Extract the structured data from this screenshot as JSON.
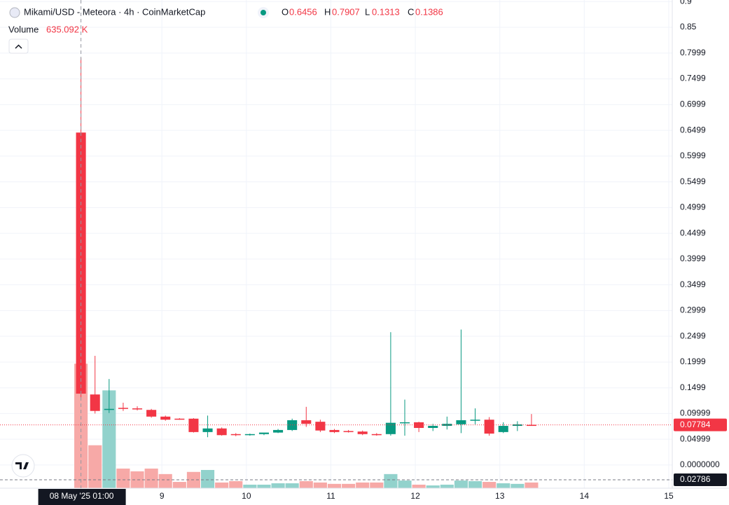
{
  "chart_data": {
    "type": "candlestick",
    "title": "Mikami/USD - Meteora · 4h · CoinMarketCap",
    "volume_title": "Volume",
    "volume_label": "635.092 K",
    "crosshair_label": "08 May '25 01:00",
    "ohlc_letters": [
      "O",
      "H",
      "L",
      "C"
    ],
    "x": [
      "2025-05-08T01:00",
      "2025-05-08T05:00",
      "2025-05-08T09:00",
      "2025-05-08T13:00",
      "2025-05-08T17:00",
      "2025-05-08T21:00",
      "2025-05-09T01:00",
      "2025-05-09T05:00",
      "2025-05-09T09:00",
      "2025-05-09T13:00",
      "2025-05-09T17:00",
      "2025-05-09T21:00",
      "2025-05-10T01:00",
      "2025-05-10T05:00",
      "2025-05-10T09:00",
      "2025-05-10T13:00",
      "2025-05-10T17:00",
      "2025-05-10T21:00",
      "2025-05-11T01:00",
      "2025-05-11T05:00",
      "2025-05-11T09:00",
      "2025-05-11T13:00",
      "2025-05-11T17:00",
      "2025-05-11T21:00",
      "2025-05-12T01:00",
      "2025-05-12T05:00",
      "2025-05-12T09:00",
      "2025-05-12T13:00",
      "2025-05-12T17:00",
      "2025-05-12T21:00",
      "2025-05-13T01:00",
      "2025-05-13T05:00",
      "2025-05-13T09:00"
    ],
    "open": [
      0.6456,
      0.137,
      0.107,
      0.111,
      0.11,
      0.107,
      0.094,
      0.09,
      0.09,
      0.064,
      0.071,
      0.06,
      0.059,
      0.06,
      0.063,
      0.068,
      0.087,
      0.084,
      0.068,
      0.066,
      0.065,
      0.06,
      0.06,
      0.082,
      0.083,
      0.072,
      0.076,
      0.079,
      0.087,
      0.088,
      0.064,
      0.076,
      0.078
    ],
    "high": [
      0.7907,
      0.212,
      0.167,
      0.121,
      0.114,
      0.109,
      0.096,
      0.091,
      0.091,
      0.096,
      0.073,
      0.062,
      0.061,
      0.062,
      0.07,
      0.09,
      0.113,
      0.088,
      0.07,
      0.068,
      0.067,
      0.062,
      0.258,
      0.127,
      0.084,
      0.08,
      0.094,
      0.263,
      0.11,
      0.093,
      0.083,
      0.085,
      0.099
    ],
    "low": [
      0.1313,
      0.1,
      0.101,
      0.105,
      0.106,
      0.092,
      0.086,
      0.088,
      0.063,
      0.054,
      0.057,
      0.056,
      0.057,
      0.058,
      0.062,
      0.066,
      0.074,
      0.064,
      0.062,
      0.063,
      0.058,
      0.057,
      0.057,
      0.057,
      0.064,
      0.066,
      0.069,
      0.062,
      0.079,
      0.057,
      0.062,
      0.066,
      0.076
    ],
    "close": [
      0.1386,
      0.105,
      0.109,
      0.109,
      0.109,
      0.094,
      0.088,
      0.089,
      0.064,
      0.071,
      0.058,
      0.059,
      0.06,
      0.063,
      0.068,
      0.087,
      0.08,
      0.067,
      0.064,
      0.065,
      0.06,
      0.059,
      0.082,
      0.083,
      0.072,
      0.076,
      0.08,
      0.087,
      0.088,
      0.061,
      0.076,
      0.079,
      0.0778
    ],
    "volume": [
      635.092,
      219,
      499,
      100,
      86,
      100,
      72,
      32,
      83,
      93,
      29,
      36,
      18,
      18,
      25,
      25,
      36,
      29,
      22,
      22,
      29,
      29,
      72,
      39,
      18,
      14,
      18,
      39,
      36,
      32,
      25,
      22,
      29
    ],
    "up_color": "#089981",
    "down_color": "#f23645",
    "up_volume_color": "#92d2cc",
    "down_volume_color": "#f7a9a7",
    "last_price": 0.07784,
    "volume_tag": "0.02786",
    "xlim": [
      "2025-05-07T02:00",
      "2025-05-15T01:00"
    ],
    "xticks": [
      {
        "value": "2025-05-09T00:00",
        "label": "9"
      },
      {
        "value": "2025-05-10T00:00",
        "label": "10"
      },
      {
        "value": "2025-05-11T00:00",
        "label": "11"
      },
      {
        "value": "2025-05-12T00:00",
        "label": "12"
      },
      {
        "value": "2025-05-13T00:00",
        "label": "13"
      },
      {
        "value": "2025-05-14T00:00",
        "label": "14"
      },
      {
        "value": "2025-05-15T00:00",
        "label": "15"
      }
    ],
    "ylim": [
      -0.045,
      0.903
    ],
    "yticks": [
      {
        "value": 0,
        "label": "0.0000000"
      },
      0.04999,
      0.09999,
      0.1499,
      0.1999,
      0.2499,
      0.2999,
      0.3499,
      0.3999,
      0.4499,
      0.4999,
      0.5499,
      0.5999,
      0.6499,
      0.6999,
      0.7499,
      0.7999,
      0.85,
      0.9
    ],
    "grid": true
  }
}
